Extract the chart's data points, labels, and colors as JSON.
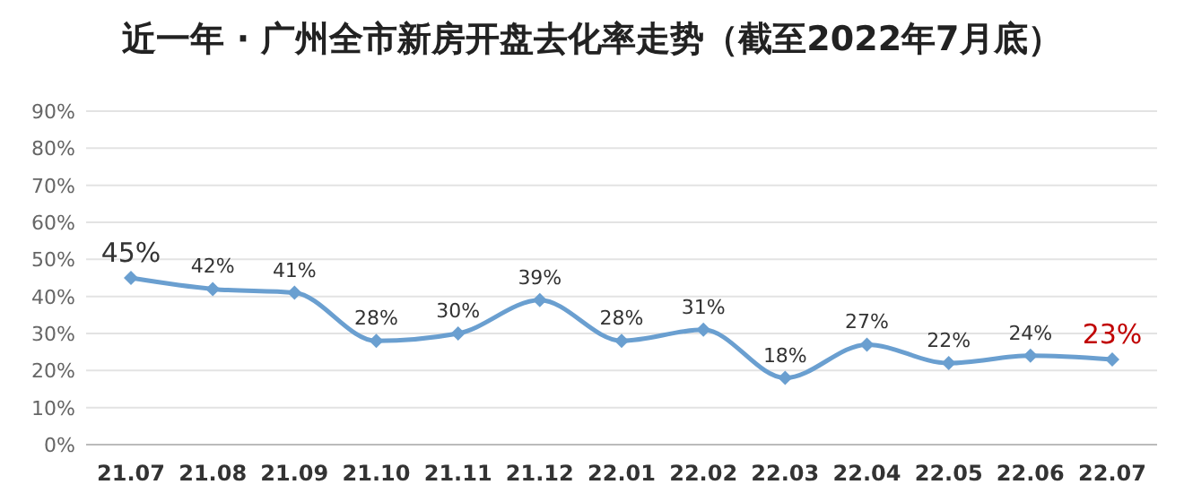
{
  "chart_data": {
    "type": "line",
    "title": "近一年 · 广州全市新房开盘去化率走势（截至2022年7月底）",
    "categories": [
      "21.07",
      "21.08",
      "21.09",
      "21.10",
      "21.11",
      "21.12",
      "22.01",
      "22.02",
      "22.03",
      "22.04",
      "22.05",
      "22.06",
      "22.07"
    ],
    "series": [
      {
        "color": "#6a9fd0",
        "values": [
          45,
          42,
          41,
          28,
          30,
          39,
          28,
          31,
          18,
          27,
          22,
          24,
          23
        ],
        "value_labels": [
          "45%",
          "42%",
          "41%",
          "28%",
          "30%",
          "39%",
          "28%",
          "31%",
          "18%",
          "27%",
          "22%",
          "24%",
          "23%"
        ]
      }
    ],
    "ylim": [
      0,
      90
    ],
    "yticks": [
      {
        "value": 0,
        "label": "0%"
      },
      {
        "value": 10,
        "label": "10%"
      },
      {
        "value": 20,
        "label": "20%"
      },
      {
        "value": 30,
        "label": "30%"
      },
      {
        "value": 40,
        "label": "40%"
      },
      {
        "value": 50,
        "label": "50%"
      },
      {
        "value": 60,
        "label": "60%"
      },
      {
        "value": 70,
        "label": "70%"
      },
      {
        "value": 80,
        "label": "80%"
      },
      {
        "value": 90,
        "label": "90%"
      }
    ],
    "grid": "y",
    "marker": "diamond",
    "line_style": "solid"
  }
}
